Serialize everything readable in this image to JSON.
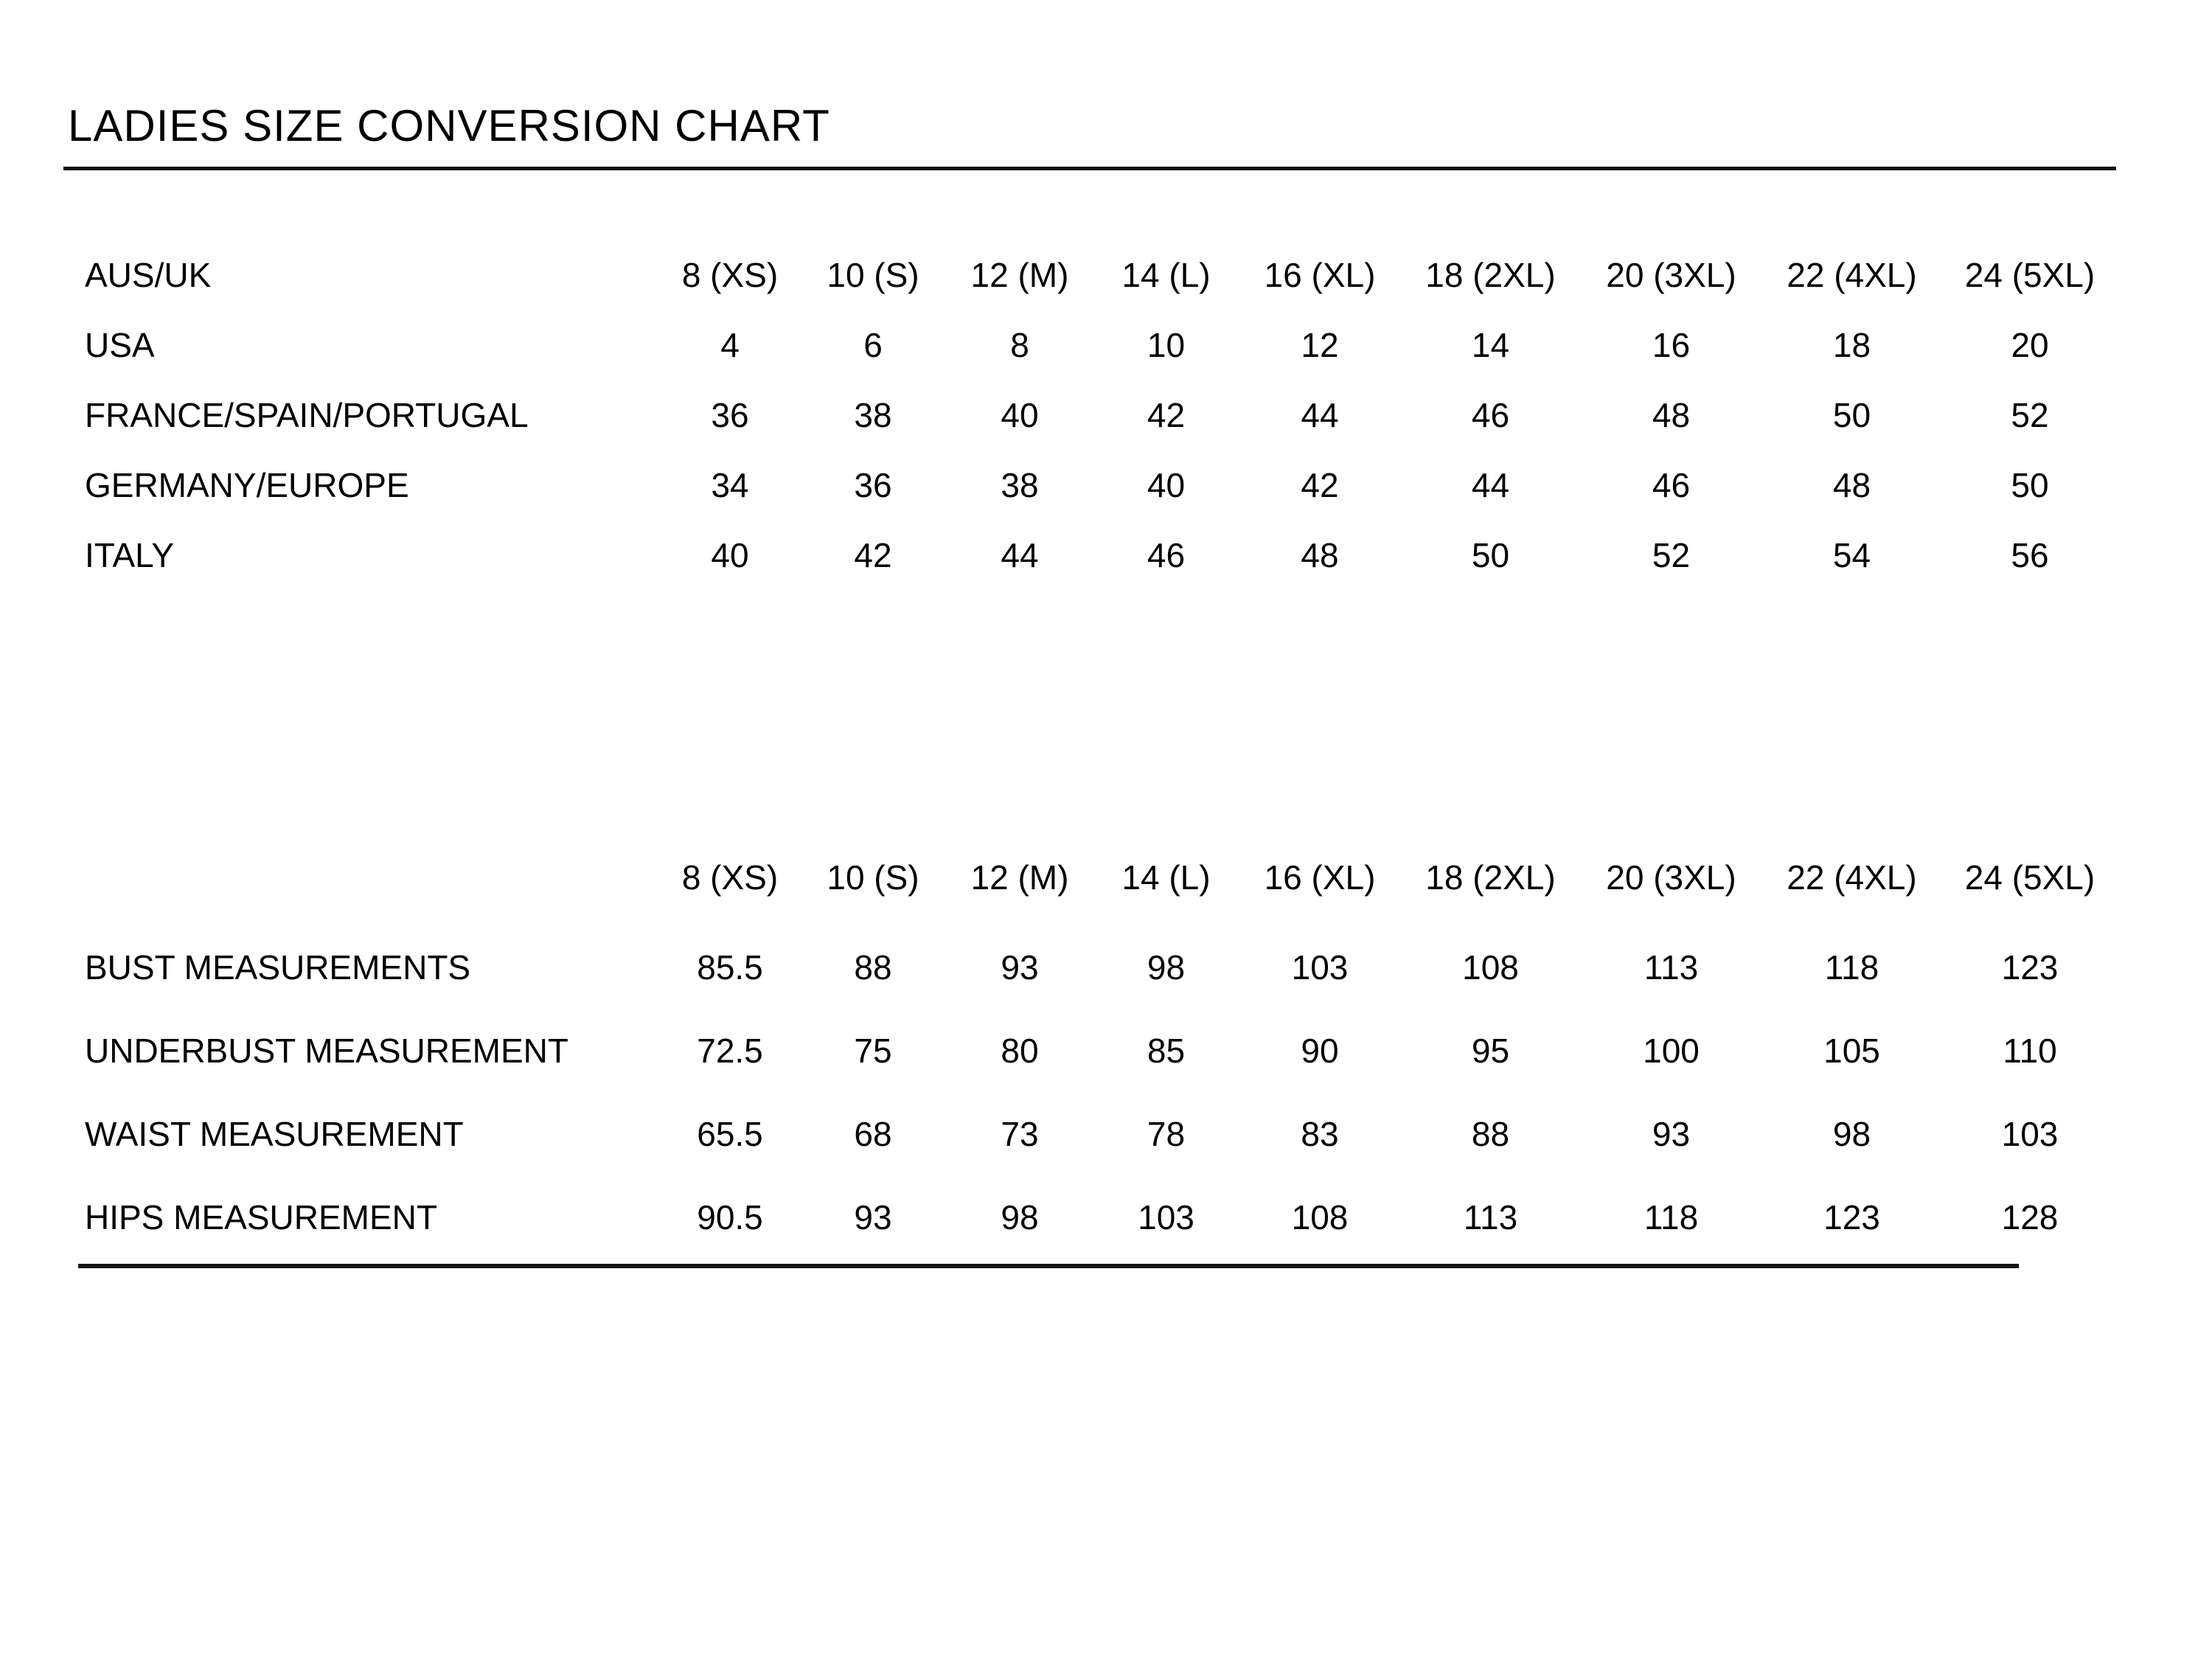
{
  "page": {
    "title": "LADIES SIZE CONVERSION CHART",
    "background_color": "#ffffff",
    "text_color": "#000000",
    "rule_color": "#141414"
  },
  "sizes": [
    "8 (XS)",
    "10 (S)",
    "12 (M)",
    "14 (L)",
    "16 (XL)",
    "18 (2XL)",
    "20 (3XL)",
    "22 (4XL)",
    "24 (5XL)"
  ],
  "conversion_table": {
    "header_label": "AUS/UK",
    "rows": [
      {
        "label": "USA",
        "values": [
          "4",
          "6",
          "8",
          "10",
          "12",
          "14",
          "16",
          "18",
          "20"
        ]
      },
      {
        "label": "FRANCE/SPAIN/PORTUGAL",
        "values": [
          "36",
          "38",
          "40",
          "42",
          "44",
          "46",
          "48",
          "50",
          "52"
        ]
      },
      {
        "label": "GERMANY/EUROPE",
        "values": [
          "34",
          "36",
          "38",
          "40",
          "42",
          "44",
          "46",
          "48",
          "50"
        ]
      },
      {
        "label": "ITALY",
        "values": [
          "40",
          "42",
          "44",
          "46",
          "48",
          "50",
          "52",
          "54",
          "56"
        ]
      }
    ]
  },
  "measurement_table": {
    "header_label": "",
    "rows": [
      {
        "label": "BUST MEASUREMENTS",
        "values": [
          "85.5",
          "88",
          "93",
          "98",
          "103",
          "108",
          "113",
          "118",
          "123"
        ]
      },
      {
        "label": "UNDERBUST MEASUREMENT",
        "values": [
          "72.5",
          "75",
          "80",
          "85",
          "90",
          "95",
          "100",
          "105",
          "110"
        ]
      },
      {
        "label": "WAIST MEASUREMENT",
        "values": [
          "65.5",
          "68",
          "73",
          "78",
          "83",
          "88",
          "93",
          "98",
          "103"
        ]
      },
      {
        "label": "HIPS MEASUREMENT",
        "values": [
          "90.5",
          "93",
          "98",
          "103",
          "108",
          "113",
          "118",
          "123",
          "128"
        ]
      }
    ]
  },
  "chart_data": {
    "type": "table",
    "title": "LADIES SIZE CONVERSION CHART",
    "columns": [
      "8 (XS)",
      "10 (S)",
      "12 (M)",
      "14 (L)",
      "16 (XL)",
      "18 (2XL)",
      "20 (3XL)",
      "22 (4XL)",
      "24 (5XL)"
    ],
    "series": [
      {
        "name": "AUS/UK",
        "values": [
          "8 (XS)",
          "10 (S)",
          "12 (M)",
          "14 (L)",
          "16 (XL)",
          "18 (2XL)",
          "20 (3XL)",
          "22 (4XL)",
          "24 (5XL)"
        ]
      },
      {
        "name": "USA",
        "values": [
          4,
          6,
          8,
          10,
          12,
          14,
          16,
          18,
          20
        ]
      },
      {
        "name": "FRANCE/SPAIN/PORTUGAL",
        "values": [
          36,
          38,
          40,
          42,
          44,
          46,
          48,
          50,
          52
        ]
      },
      {
        "name": "GERMANY/EUROPE",
        "values": [
          34,
          36,
          38,
          40,
          42,
          44,
          46,
          48,
          50
        ]
      },
      {
        "name": "ITALY",
        "values": [
          40,
          42,
          44,
          46,
          48,
          50,
          52,
          54,
          56
        ]
      },
      {
        "name": "BUST MEASUREMENTS",
        "values": [
          85.5,
          88,
          93,
          98,
          103,
          108,
          113,
          118,
          123
        ]
      },
      {
        "name": "UNDERBUST MEASUREMENT",
        "values": [
          72.5,
          75,
          80,
          85,
          90,
          95,
          100,
          105,
          110
        ]
      },
      {
        "name": "WAIST MEASUREMENT",
        "values": [
          65.5,
          68,
          73,
          78,
          83,
          88,
          93,
          98,
          103
        ]
      },
      {
        "name": "HIPS MEASUREMENT",
        "values": [
          90.5,
          93,
          98,
          103,
          108,
          113,
          118,
          123,
          128
        ]
      }
    ]
  }
}
